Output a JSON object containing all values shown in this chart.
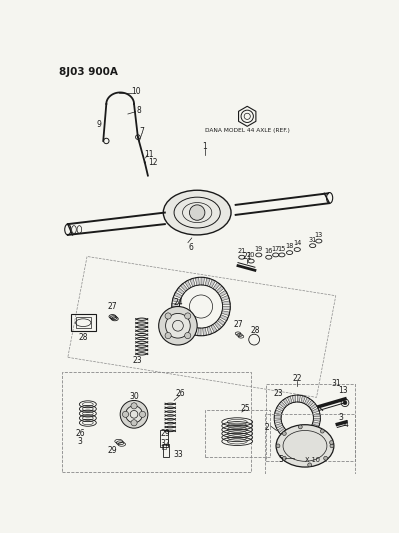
{
  "title": "8J03 900A",
  "dana_label": "DANA MODEL 44 AXLE (REF.)",
  "bg_color": "#f5f5f0",
  "fg_color": "#1a1a1a",
  "fig_width": 3.99,
  "fig_height": 5.33,
  "dpi": 100
}
